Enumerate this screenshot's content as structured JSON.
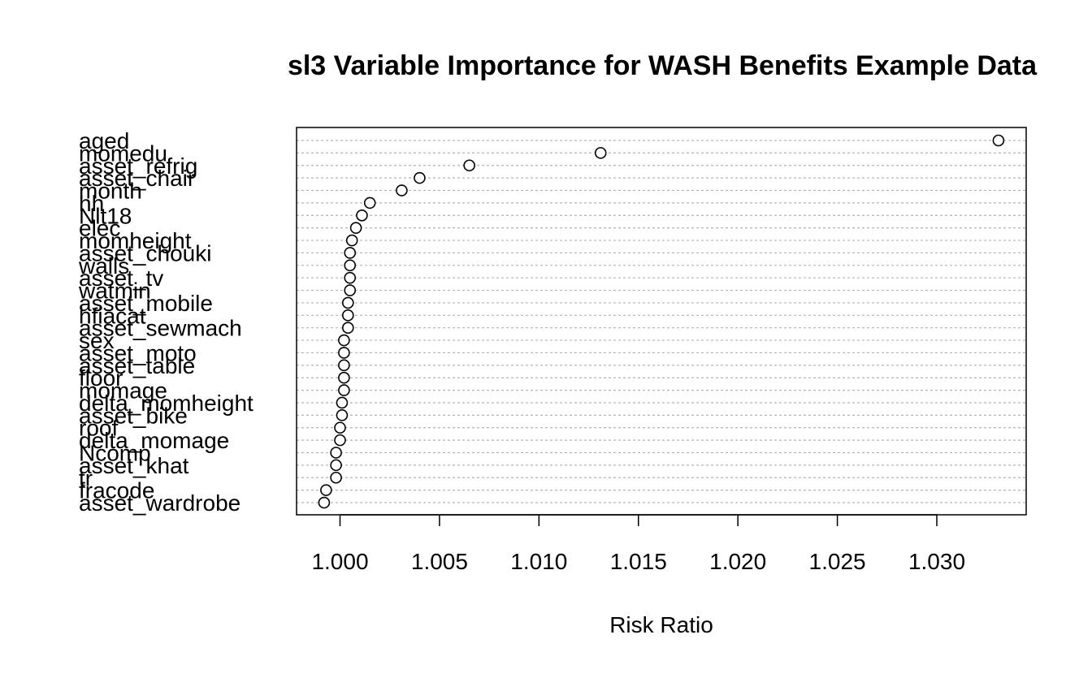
{
  "chart_data": {
    "type": "scatter",
    "subtype": "dotchart",
    "title": "sl3 Variable Importance for WASH Benefits Example Data",
    "xlabel": "Risk Ratio",
    "ylabel": "",
    "xlim": [
      0.998,
      1.0345
    ],
    "xticks": [
      "1.000",
      "1.005",
      "1.010",
      "1.015",
      "1.020",
      "1.025",
      "1.030"
    ],
    "xtick_values": [
      1.0,
      1.005,
      1.01,
      1.015,
      1.02,
      1.025,
      1.03
    ],
    "grid": true,
    "categories": [
      "aged",
      "momedu",
      "asset_refrig",
      "asset_chair",
      "month",
      "hh",
      "Nlt18",
      "elec",
      "momheight",
      "asset_chouki",
      "walls",
      "asset_tv",
      "watmin",
      "asset_mobile",
      "hfiacat",
      "asset_sewmach",
      "sex",
      "asset_moto",
      "asset_table",
      "floor",
      "momage",
      "delta_momheight",
      "asset_bike",
      "roof",
      "delta_momage",
      "Ncomp",
      "asset_khat",
      "tr",
      "fracode",
      "asset_wardrobe"
    ],
    "values": [
      1.0331,
      1.0131,
      1.0065,
      1.004,
      1.0031,
      1.0015,
      1.0011,
      1.0008,
      1.0006,
      1.0005,
      1.0005,
      1.0005,
      1.0005,
      1.0004,
      1.0004,
      1.0004,
      1.0002,
      1.0002,
      1.0002,
      1.0002,
      1.0002,
      1.0001,
      1.0001,
      1.0,
      1.0,
      0.9998,
      0.9998,
      0.9998,
      0.9993,
      0.9992
    ]
  }
}
